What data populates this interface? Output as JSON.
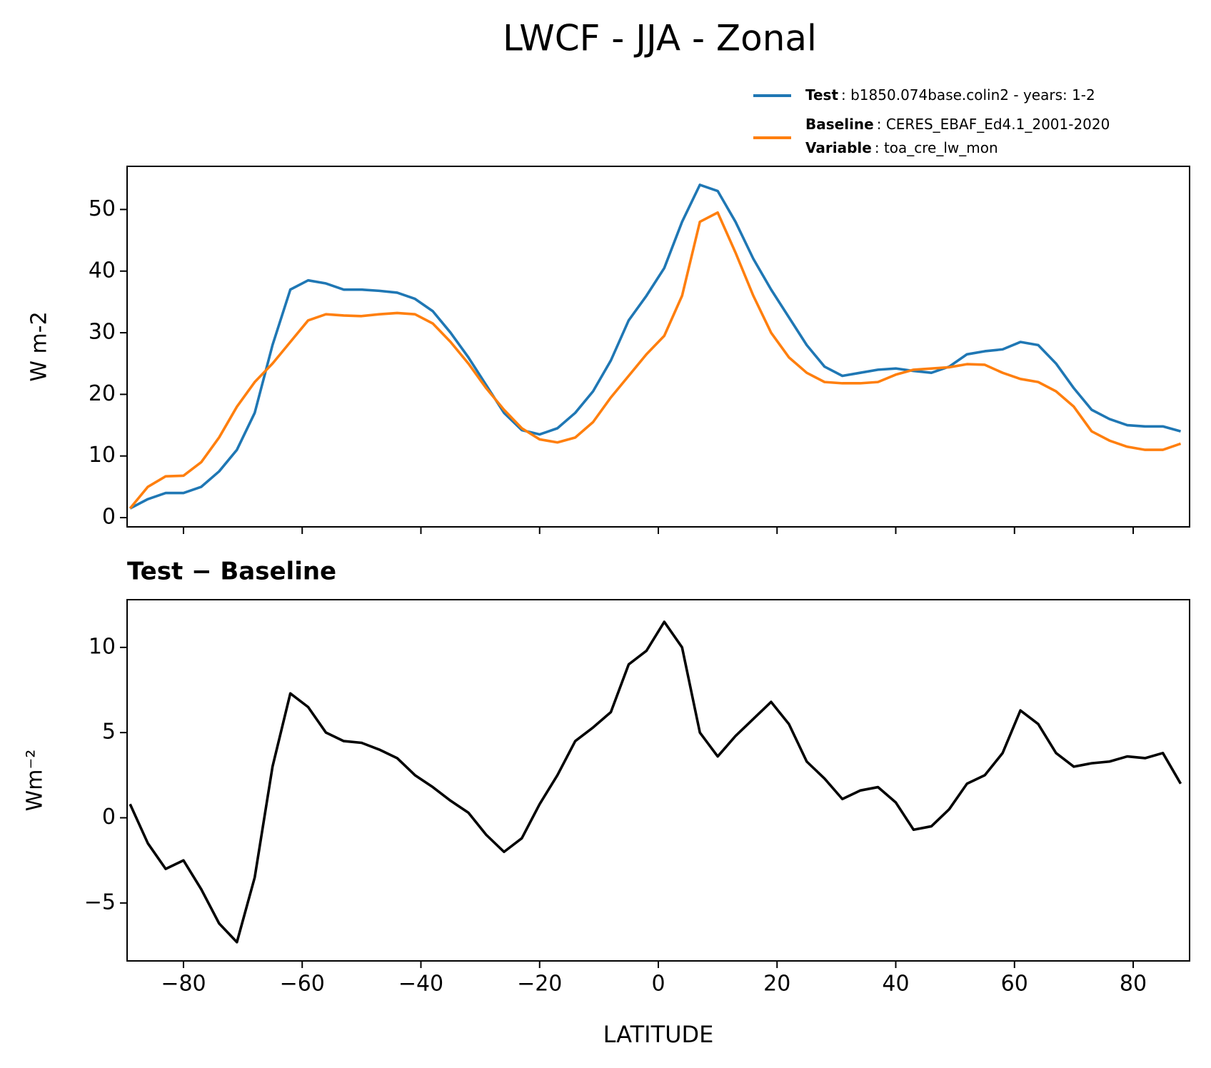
{
  "figure": {
    "title": "LWCF - JJA - Zonal"
  },
  "chart_data": [
    {
      "type": "line",
      "ylabel": "W m-2",
      "x": [
        -89,
        -86,
        -83,
        -80,
        -77,
        -74,
        -71,
        -68,
        -65,
        -62,
        -59,
        -56,
        -53,
        -50,
        -47,
        -44,
        -41,
        -38,
        -35,
        -32,
        -29,
        -26,
        -23,
        -20,
        -17,
        -14,
        -11,
        -8,
        -5,
        -2,
        1,
        4,
        7,
        10,
        13,
        16,
        19,
        22,
        25,
        28,
        31,
        34,
        37,
        40,
        43,
        46,
        49,
        52,
        55,
        58,
        61,
        64,
        67,
        70,
        73,
        76,
        79,
        82,
        85,
        88
      ],
      "series": [
        {
          "name": "Test",
          "label": ": b1850.074base.colin2 - years: 1-2",
          "color": "#1f77b4",
          "values": [
            1.5,
            3,
            4,
            4,
            5,
            7.5,
            11,
            17,
            28,
            37,
            38.5,
            38,
            37,
            37,
            36.8,
            36.5,
            35.5,
            33.5,
            30,
            26,
            21.5,
            17,
            14.2,
            13.5,
            14.5,
            17,
            20.5,
            25.5,
            32,
            36,
            40.5,
            48,
            54,
            53,
            48,
            42,
            37,
            32.5,
            28,
            24.5,
            23,
            23.5,
            24,
            24.2,
            23.8,
            23.5,
            24.5,
            26.5,
            27,
            27.3,
            28.5,
            28,
            25,
            21,
            17.5,
            16,
            15,
            14.8,
            14.8,
            14
          ]
        },
        {
          "name": "Baseline",
          "label": ": CERES_EBAF_Ed4.1_2001-2020",
          "color": "#ff7f0e",
          "values": [
            1.5,
            5,
            6.7,
            6.8,
            9,
            13,
            18,
            22,
            25,
            28.5,
            32,
            33,
            32.8,
            32.7,
            33,
            33.2,
            33,
            31.5,
            28.5,
            25,
            21,
            17.5,
            14.5,
            12.7,
            12.2,
            13,
            15.5,
            19.5,
            23,
            26.5,
            29.5,
            36,
            48,
            49.5,
            43,
            36,
            30,
            26,
            23.5,
            22,
            21.8,
            21.8,
            22,
            23.2,
            24,
            24.2,
            24.4,
            24.9,
            24.8,
            23.5,
            22.5,
            22,
            20.5,
            18,
            14,
            12.5,
            11.5,
            11,
            11,
            12
          ]
        }
      ],
      "legend_extra": {
        "name": "Variable",
        "label": ": toa_cre_lw_mon"
      },
      "xlim": [
        -89.5,
        89.5
      ],
      "ylim": [
        -1.5,
        57
      ],
      "xticks": [
        -80,
        -60,
        -40,
        -20,
        0,
        20,
        40,
        60,
        80
      ],
      "show_xtick_labels": false,
      "yticks": [
        0,
        10,
        20,
        30,
        40,
        50
      ]
    },
    {
      "type": "line",
      "title": "Test − Baseline",
      "ylabel": "Wm⁻²",
      "xlabel": "LATITUDE",
      "x": [
        -89,
        -86,
        -83,
        -80,
        -77,
        -74,
        -71,
        -68,
        -65,
        -62,
        -59,
        -56,
        -53,
        -50,
        -47,
        -44,
        -41,
        -38,
        -35,
        -32,
        -29,
        -26,
        -23,
        -20,
        -17,
        -14,
        -11,
        -8,
        -5,
        -2,
        1,
        4,
        7,
        10,
        13,
        16,
        19,
        22,
        25,
        28,
        31,
        34,
        37,
        40,
        43,
        46,
        49,
        52,
        55,
        58,
        61,
        64,
        67,
        70,
        73,
        76,
        79,
        82,
        85,
        88
      ],
      "series": [
        {
          "color": "#000000",
          "values": [
            0.8,
            -1.5,
            -3,
            -2.5,
            -4.2,
            -6.2,
            -7.3,
            -3.5,
            3,
            7.3,
            6.5,
            5,
            4.5,
            4.4,
            4,
            3.5,
            2.5,
            1.8,
            1,
            0.3,
            -1,
            -2,
            -1.2,
            0.8,
            2.5,
            4.5,
            5.3,
            6.2,
            9,
            9.8,
            11.5,
            10,
            5,
            3.6,
            4.8,
            5.8,
            6.8,
            5.5,
            3.3,
            2.3,
            1.1,
            1.6,
            1.8,
            0.9,
            -0.7,
            -0.5,
            0.5,
            2,
            2.5,
            3.8,
            6.3,
            5.5,
            3.8,
            3,
            3.2,
            3.3,
            3.6,
            3.5,
            3.8,
            2
          ]
        }
      ],
      "xlim": [
        -89.5,
        89.5
      ],
      "ylim": [
        -8.4,
        12.8
      ],
      "xticks": [
        {
          "value": -80,
          "label": "−80"
        },
        {
          "value": -60,
          "label": "−60"
        },
        {
          "value": -40,
          "label": "−40"
        },
        {
          "value": -20,
          "label": "−20"
        },
        0,
        20,
        40,
        60,
        80
      ],
      "show_xtick_labels": true,
      "yticks": [
        {
          "value": -5,
          "label": "−5"
        },
        0,
        5,
        10
      ]
    }
  ]
}
